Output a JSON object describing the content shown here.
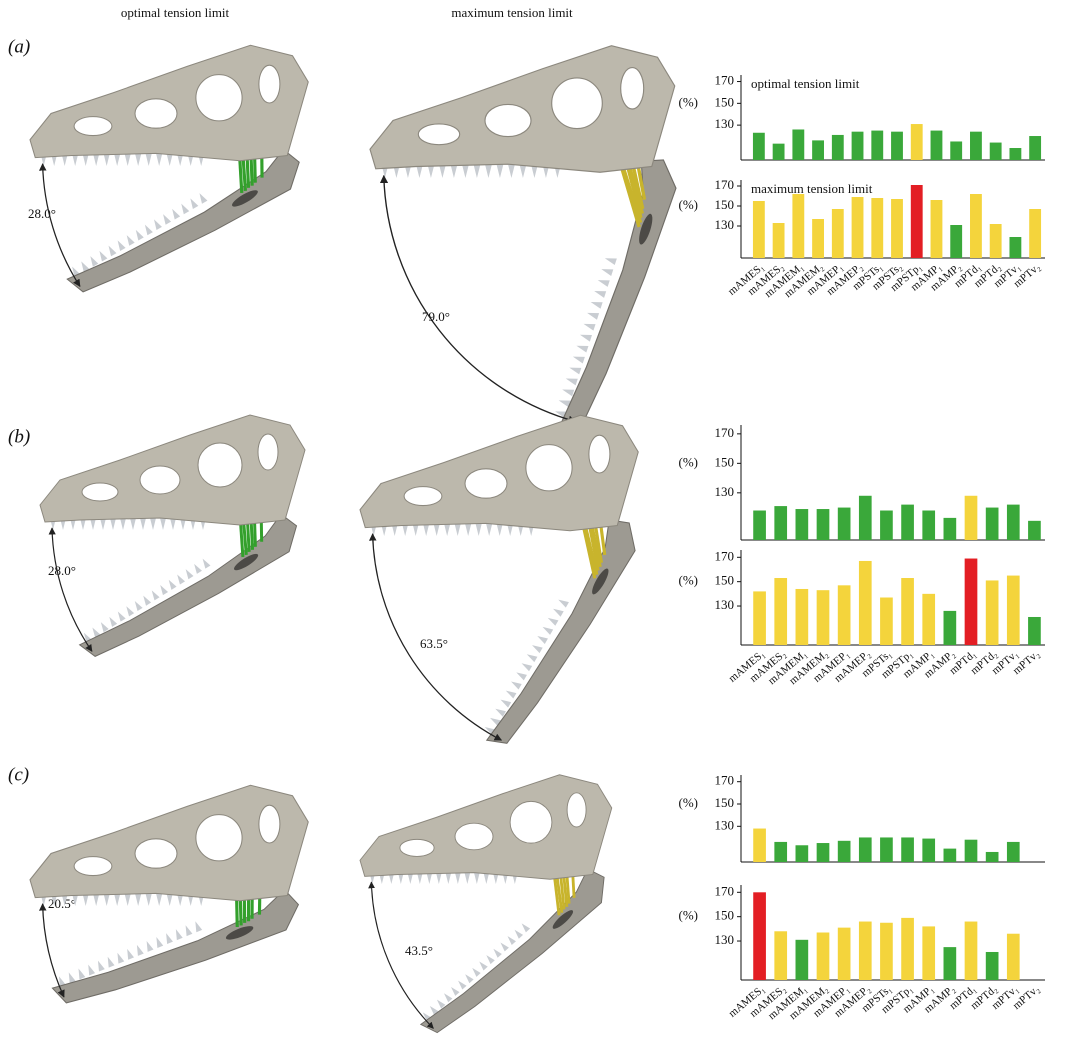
{
  "header": {
    "optimal": "optimal tension limit",
    "maximum": "maximum tension limit"
  },
  "panels": [
    {
      "label": "(a)",
      "angles": [
        "28.0°",
        "79.0°"
      ]
    },
    {
      "label": "(b)",
      "angles": [
        "28.0°",
        "63.5°"
      ]
    },
    {
      "label": "(c)",
      "angles": [
        "20.5°",
        "43.5°"
      ]
    }
  ],
  "chart_data": [
    {
      "type": "bar",
      "subtitle": "optimal tension limit",
      "ylabel": "(%)",
      "values": [
        123,
        113,
        126,
        116,
        121,
        124,
        125,
        124,
        131,
        125,
        115,
        124,
        114,
        109,
        120
      ],
      "colors": [
        "#3aa83a",
        "#3aa83a",
        "#3aa83a",
        "#3aa83a",
        "#3aa83a",
        "#3aa83a",
        "#3aa83a",
        "#3aa83a",
        "#f4d43c",
        "#3aa83a",
        "#3aa83a",
        "#3aa83a",
        "#3aa83a",
        "#3aa83a",
        "#3aa83a"
      ],
      "ylim": [
        98,
        176
      ],
      "yticks": [
        130,
        150,
        170
      ]
    },
    {
      "type": "bar",
      "subtitle": "maximum tension limit",
      "ylabel": "(%)",
      "categories": [
        "mAMES₁",
        "mAMES₂",
        "mAMEM₁",
        "mAMEM₂",
        "mAMEP₁",
        "mAMEP₂",
        "mPSTs₁",
        "mPSTs₂",
        "mPSTp₁",
        "mAMP₁",
        "mAMP₂",
        "mPTd₁",
        "mPTd₂",
        "mPTv₁",
        "mPTv₂"
      ],
      "values": [
        155,
        133,
        162,
        137,
        147,
        159,
        158,
        157,
        171,
        156,
        131,
        162,
        132,
        119,
        147
      ],
      "colors": [
        "#f4d43c",
        "#f4d43c",
        "#f4d43c",
        "#f4d43c",
        "#f4d43c",
        "#f4d43c",
        "#f4d43c",
        "#f4d43c",
        "#e31e24",
        "#f4d43c",
        "#3aa83a",
        "#f4d43c",
        "#f4d43c",
        "#3aa83a",
        "#f4d43c"
      ],
      "ylim": [
        98,
        176
      ],
      "yticks": [
        130,
        150,
        170
      ]
    },
    {
      "type": "bar",
      "ylabel": "(%)",
      "values": [
        118,
        121,
        119,
        119,
        120,
        128,
        118,
        122,
        118,
        113,
        128,
        120,
        122,
        111
      ],
      "colors": [
        "#3aa83a",
        "#3aa83a",
        "#3aa83a",
        "#3aa83a",
        "#3aa83a",
        "#3aa83a",
        "#3aa83a",
        "#3aa83a",
        "#3aa83a",
        "#3aa83a",
        "#f4d43c",
        "#3aa83a",
        "#3aa83a",
        "#3aa83a"
      ],
      "ylim": [
        98,
        176
      ],
      "yticks": [
        130,
        150,
        170
      ]
    },
    {
      "type": "bar",
      "ylabel": "(%)",
      "categories": [
        "mAMES₁",
        "mAMES₂",
        "mAMEM₁",
        "mAMEM₂",
        "mAMEP₁",
        "mAMEP₂",
        "mPSTs₁",
        "mPSTp₁",
        "mAMP₁",
        "mAMP₂",
        "mPTd₁",
        "mPTd₂",
        "mPTv₁",
        "mPTv₂"
      ],
      "values": [
        142,
        153,
        144,
        143,
        147,
        167,
        137,
        153,
        140,
        126,
        169,
        151,
        155,
        121
      ],
      "colors": [
        "#f4d43c",
        "#f4d43c",
        "#f4d43c",
        "#f4d43c",
        "#f4d43c",
        "#f4d43c",
        "#f4d43c",
        "#f4d43c",
        "#f4d43c",
        "#3aa83a",
        "#e31e24",
        "#f4d43c",
        "#f4d43c",
        "#3aa83a"
      ],
      "ylim": [
        98,
        176
      ],
      "yticks": [
        130,
        150,
        170
      ]
    },
    {
      "type": "bar",
      "ylabel": "(%)",
      "values": [
        128,
        116,
        113,
        115,
        117,
        120,
        120,
        120,
        119,
        110,
        118,
        107,
        116,
        null
      ],
      "colors": [
        "#f4d43c",
        "#3aa83a",
        "#3aa83a",
        "#3aa83a",
        "#3aa83a",
        "#3aa83a",
        "#3aa83a",
        "#3aa83a",
        "#3aa83a",
        "#3aa83a",
        "#3aa83a",
        "#3aa83a",
        "#3aa83a",
        "#3aa83a"
      ],
      "ylim": [
        98,
        176
      ],
      "yticks": [
        130,
        150,
        170
      ]
    },
    {
      "type": "bar",
      "ylabel": "(%)",
      "categories": [
        "mAMES₁",
        "mAMES₂",
        "mAMEM₁",
        "mAMEM₂",
        "mAMEP₁",
        "mAMEP₂",
        "mPSTs₁",
        "mPSTp₁",
        "mAMP₁",
        "mAMP₂",
        "mPTd₁",
        "mPTd₂",
        "mPTv₁",
        "mPTv₂"
      ],
      "values": [
        170,
        138,
        131,
        137,
        141,
        146,
        145,
        149,
        142,
        125,
        146,
        121,
        136,
        null
      ],
      "colors": [
        "#e31e24",
        "#f4d43c",
        "#3aa83a",
        "#f4d43c",
        "#f4d43c",
        "#f4d43c",
        "#f4d43c",
        "#f4d43c",
        "#f4d43c",
        "#3aa83a",
        "#f4d43c",
        "#3aa83a",
        "#f4d43c",
        "#3aa83a"
      ],
      "ylim": [
        98,
        176
      ],
      "yticks": [
        130,
        150,
        170
      ]
    }
  ]
}
